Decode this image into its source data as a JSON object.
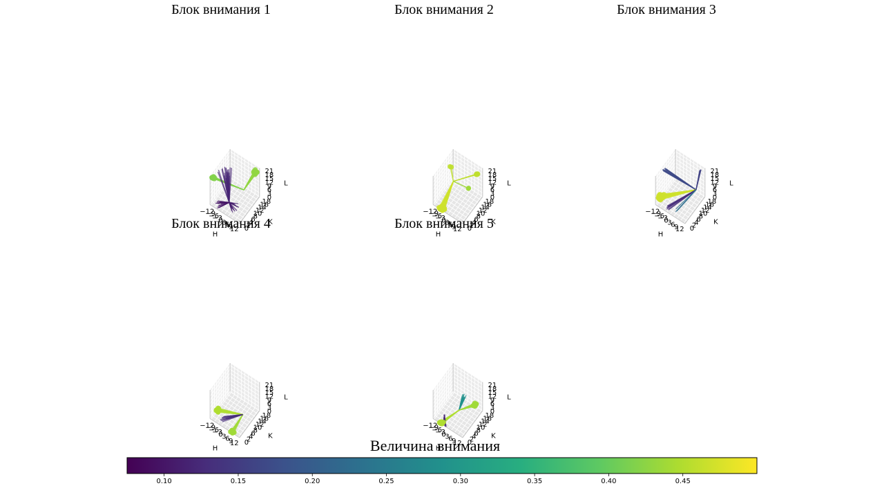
{
  "chart_data": {
    "type": "3d-line-scatter",
    "panels": [
      {
        "title": "Блок внимания 1",
        "xlabel": "H",
        "ylabel": "K",
        "zlabel": "L",
        "xticks": [
          "−12",
          "−9",
          "−6",
          "−3",
          "0",
          "3",
          "6",
          "9",
          "12"
        ],
        "yticks": [
          "0",
          "2",
          "4",
          "6",
          "8",
          "10",
          "12",
          "14",
          "16",
          "18"
        ],
        "zticks": [
          "0",
          "3",
          "6",
          "9",
          "12",
          "15",
          "18",
          "21"
        ],
        "xlim": [
          -13,
          13
        ],
        "ylim": [
          0,
          18
        ],
        "zlim": [
          0,
          23
        ],
        "centers": [
          {
            "h": -2,
            "k": 6,
            "l": 1,
            "weight": 0.12
          },
          {
            "h": 5,
            "k": 12,
            "l": 8,
            "weight": 0.14
          }
        ],
        "fan": [
          {
            "from": 1,
            "to": {
              "h": 11,
              "k": 16,
              "l": 21
            },
            "count": 14,
            "spread": 2.5,
            "weight": 0.43
          },
          {
            "from": 1,
            "to": {
              "h": -11,
              "k": 1,
              "l": 22
            },
            "count": 10,
            "spread": 2,
            "weight": 0.42
          },
          {
            "from": 0,
            "to": {
              "h": -10,
              "k": 10,
              "l": 16
            },
            "count": 20,
            "spread": 8,
            "weight": 0.12
          },
          {
            "from": 0,
            "to": {
              "h": 6,
              "k": 4,
              "l": 4
            },
            "count": 16,
            "spread": 6,
            "weight": 0.11
          },
          {
            "from": 0,
            "to": {
              "h": -8,
              "k": 2,
              "l": 2
            },
            "count": 14,
            "spread": 5,
            "weight": 0.1
          }
        ]
      },
      {
        "title": "Блок внимания 2",
        "xlabel": "H",
        "ylabel": "K",
        "zlabel": "L",
        "xticks": [
          "−12",
          "−9",
          "−6",
          "−3",
          "0",
          "3",
          "6",
          "9",
          "12"
        ],
        "yticks": [
          "0",
          "2",
          "4",
          "6",
          "8",
          "10",
          "12",
          "14",
          "16",
          "18"
        ],
        "zticks": [
          "0",
          "3",
          "6",
          "9",
          "12",
          "15",
          "18",
          "21"
        ],
        "xlim": [
          -13,
          13
        ],
        "ylim": [
          0,
          18
        ],
        "zlim": [
          0,
          23
        ],
        "centers": [
          {
            "h": -3,
            "k": 8,
            "l": 15,
            "weight": 0.48
          }
        ],
        "fan": [
          {
            "from": 0,
            "to": {
              "h": -6,
              "k": 0,
              "l": 0
            },
            "count": 24,
            "spread": 4,
            "weight": 0.47
          },
          {
            "from": 0,
            "to": {
              "h": 10,
              "k": 16,
              "l": 19
            },
            "count": 6,
            "spread": 1,
            "weight": 0.46
          },
          {
            "from": 0,
            "to": {
              "h": -7,
              "k": 10,
              "l": 22
            },
            "count": 2,
            "spread": 1,
            "weight": 0.46
          },
          {
            "from": 0,
            "to": {
              "h": 4,
              "k": 14,
              "l": 6
            },
            "count": 2,
            "spread": 1,
            "weight": 0.44
          }
        ]
      },
      {
        "title": "Блок внимания 3",
        "xlabel": "H",
        "ylabel": "K",
        "zlabel": "L",
        "xticks": [
          "−12",
          "−9",
          "−6",
          "−3",
          "0",
          "3",
          "6",
          "9",
          "12"
        ],
        "yticks": [
          "0",
          "2",
          "4",
          "6",
          "8",
          "10",
          "12",
          "14",
          "16",
          "18"
        ],
        "zticks": [
          "0",
          "3",
          "6",
          "9",
          "12",
          "15",
          "18",
          "21"
        ],
        "xlim": [
          -13,
          13
        ],
        "ylim": [
          0,
          18
        ],
        "zlim": [
          0,
          23
        ],
        "centers": [
          {
            "h": 9,
            "k": 14,
            "l": 8,
            "weight": 0.17
          }
        ],
        "fan": [
          {
            "from": 0,
            "to": {
              "h": -10,
              "k": 5,
              "l": 24
            },
            "count": 12,
            "spread": 2,
            "weight": 0.17
          },
          {
            "from": 0,
            "to": {
              "h": 10,
              "k": 17,
              "l": 21
            },
            "count": 6,
            "spread": 1,
            "weight": 0.16
          },
          {
            "from": 0,
            "to": {
              "h": -11,
              "k": 3,
              "l": 4
            },
            "count": 22,
            "spread": 3,
            "weight": 0.47
          },
          {
            "from": 0,
            "to": {
              "h": -4,
              "k": 2,
              "l": 0
            },
            "count": 10,
            "spread": 3,
            "weight": 0.13
          },
          {
            "from": 0,
            "to": {
              "h": 2,
              "k": 3,
              "l": 0
            },
            "count": 4,
            "spread": 2,
            "weight": 0.23
          }
        ]
      },
      {
        "title": "Блок внимания 4",
        "xlabel": "H",
        "ylabel": "K",
        "zlabel": "L",
        "xticks": [
          "−12",
          "−9",
          "−6",
          "−3",
          "0",
          "3",
          "6",
          "9",
          "12"
        ],
        "yticks": [
          "0",
          "2",
          "4",
          "6",
          "8",
          "10",
          "12",
          "14",
          "16",
          "18"
        ],
        "zticks": [
          "0",
          "3",
          "6",
          "9",
          "12",
          "15",
          "18",
          "21"
        ],
        "xlim": [
          -13,
          13
        ],
        "ylim": [
          0,
          18
        ],
        "zlim": [
          0,
          23
        ],
        "centers": [
          {
            "h": 8,
            "k": 8,
            "l": 6,
            "weight": 0.12
          }
        ],
        "fan": [
          {
            "from": 0,
            "to": {
              "h": -10,
              "k": 4,
              "l": 4
            },
            "count": 16,
            "spread": 2,
            "weight": 0.45
          },
          {
            "from": 0,
            "to": {
              "h": 6,
              "k": 0,
              "l": 0
            },
            "count": 12,
            "spread": 3,
            "weight": 0.44
          },
          {
            "from": 0,
            "to": {
              "h": -4,
              "k": 2,
              "l": 2
            },
            "count": 10,
            "spread": 3,
            "weight": 0.13
          }
        ]
      },
      {
        "title": "Блок внимания 5",
        "xlabel": "H",
        "ylabel": "K",
        "zlabel": "L",
        "xticks": [
          "−12",
          "−9",
          "−6",
          "−3",
          "0",
          "3",
          "6",
          "9",
          "12"
        ],
        "yticks": [
          "0",
          "2",
          "4",
          "6",
          "8",
          "10",
          "12",
          "14",
          "16",
          "18"
        ],
        "zticks": [
          "0",
          "3",
          "6",
          "9",
          "12",
          "15",
          "18",
          "21"
        ],
        "xlim": [
          -13,
          13
        ],
        "ylim": [
          0,
          18
        ],
        "zlim": [
          0,
          23
        ],
        "centers": [
          {
            "h": 2,
            "k": 8,
            "l": 6,
            "weight": 0.28
          },
          {
            "h": -7,
            "k": 4,
            "l": 2,
            "weight": 0.12
          }
        ],
        "fan": [
          {
            "from": 0,
            "to": {
              "h": 2,
              "k": 12,
              "l": 12
            },
            "count": 14,
            "spread": 3,
            "weight": 0.29
          },
          {
            "from": 0,
            "to": {
              "h": 10,
              "k": 14,
              "l": 8
            },
            "count": 10,
            "spread": 2,
            "weight": 0.44
          },
          {
            "from": 0,
            "to": {
              "h": -6,
              "k": 0,
              "l": 0
            },
            "count": 16,
            "spread": 3,
            "weight": 0.45
          },
          {
            "from": 1,
            "to": {
              "h": -3,
              "k": 0,
              "l": 0
            },
            "count": 10,
            "spread": 3,
            "weight": 0.12
          }
        ]
      }
    ],
    "colorbar": {
      "label": "Величина внимания",
      "colormap": "viridis",
      "range": [
        0.075,
        0.5
      ],
      "ticks": [
        0.1,
        0.15,
        0.2,
        0.25,
        0.3,
        0.35,
        0.4,
        0.45
      ],
      "tick_labels": [
        "0.10",
        "0.15",
        "0.20",
        "0.25",
        "0.30",
        "0.35",
        "0.40",
        "0.45"
      ]
    }
  }
}
